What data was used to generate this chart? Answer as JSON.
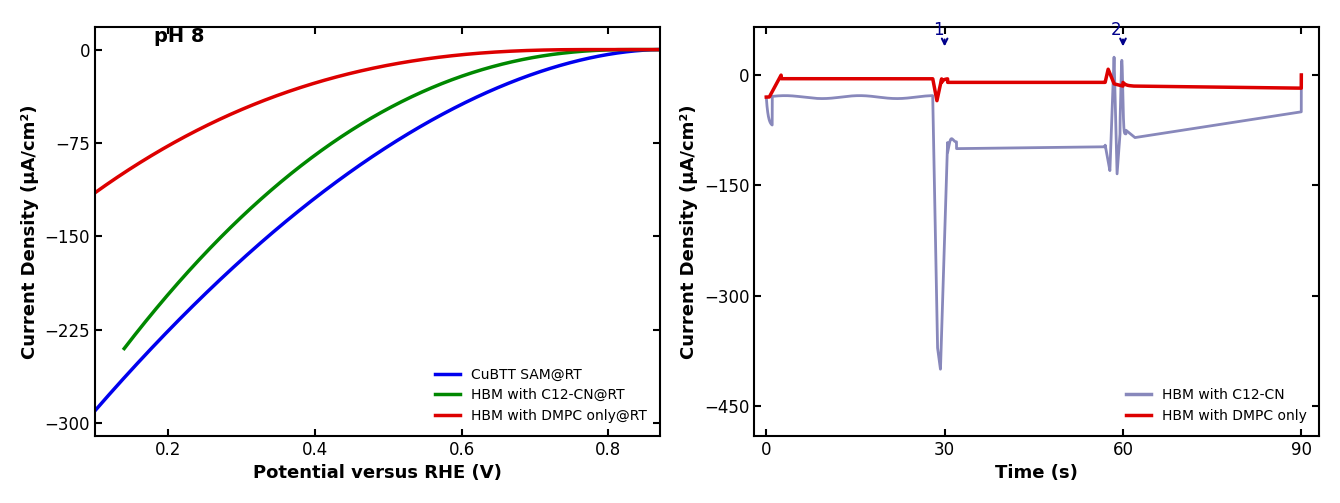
{
  "left": {
    "title_text": "pH 8",
    "xlabel": "Potential versus RHE (V)",
    "ylabel": "Current Density (μA/cm²)",
    "xlim": [
      0.1,
      0.87
    ],
    "ylim": [
      -310,
      18
    ],
    "xticks": [
      0.2,
      0.4,
      0.6,
      0.8
    ],
    "yticks": [
      0,
      -75,
      -150,
      -225,
      -300
    ],
    "colors": {
      "blue": "#0000ee",
      "green": "#008800",
      "red": "#dd0000"
    },
    "legend": [
      {
        "label": "CuBTT SAM@RT",
        "color": "#0000ee"
      },
      {
        "label": "HBM with C12-CN@RT",
        "color": "#008800"
      },
      {
        "label": "HBM with DMPC only@RT",
        "color": "#dd0000"
      }
    ]
  },
  "right": {
    "xlabel": "Time (s)",
    "ylabel": "Current Density (μA/cm²)",
    "xlim": [
      -2,
      93
    ],
    "ylim": [
      -490,
      65
    ],
    "xticks": [
      0,
      30,
      60,
      90
    ],
    "yticks": [
      0,
      -150,
      -300,
      -450
    ],
    "colors": {
      "blue_light": "#8888bb",
      "red": "#dd0000"
    },
    "legend": [
      {
        "label": "HBM with C12-CN",
        "color": "#8888bb"
      },
      {
        "label": "HBM with DMPC only",
        "color": "#dd0000"
      }
    ],
    "arrow_color": "#00008b"
  }
}
